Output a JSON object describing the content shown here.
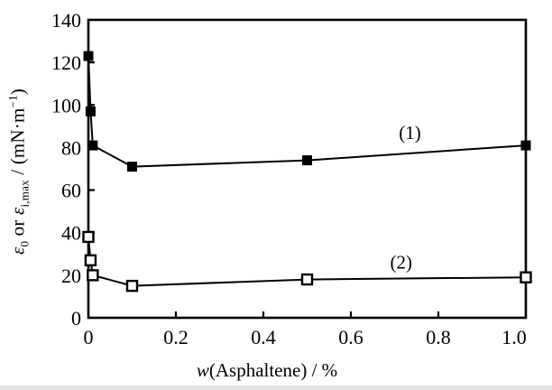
{
  "figure": {
    "background": "#ffffff",
    "ink_color": "#000000"
  },
  "chart_data": {
    "type": "line",
    "xlabel_italic": "w",
    "xlabel_rest": "(Asphaltene) / %",
    "ylabel": {
      "eps1": "ε",
      "eps1_sub": "0",
      "middle": " or ",
      "eps2": "ε",
      "eps2_sub": "i,max",
      "divider": " / (mN·m",
      "exponent": "−1",
      "close": ")"
    },
    "xlim": [
      0,
      1.0
    ],
    "ylim": [
      0,
      140
    ],
    "x_ticks": {
      "values": [
        0,
        0.2,
        0.4,
        0.6,
        0.8,
        1.0
      ],
      "labels": [
        "0",
        "0.2",
        "0.4",
        "0.6",
        "0.8",
        "1.0"
      ]
    },
    "y_ticks": {
      "values": [
        0,
        20,
        40,
        60,
        80,
        100,
        120,
        140
      ],
      "labels": [
        "0",
        "20",
        "40",
        "60",
        "80",
        "100",
        "120",
        "140"
      ]
    },
    "grid": false,
    "legend_position": "inline-annotations",
    "series": [
      {
        "name": "(1)",
        "marker": "filled-square",
        "x": [
          0,
          0.005,
          0.01,
          0.1,
          0.5,
          1.0
        ],
        "values": [
          123,
          97,
          81,
          71,
          74,
          81
        ]
      },
      {
        "name": "(2)",
        "marker": "open-square",
        "x": [
          0,
          0.005,
          0.01,
          0.1,
          0.5,
          1.0
        ],
        "values": [
          38,
          27,
          20,
          15,
          18,
          19
        ]
      }
    ],
    "annotations": [
      {
        "text": "(1)",
        "x": 0.735,
        "y": 87
      },
      {
        "text": "(2)",
        "x": 0.715,
        "y": 26
      }
    ]
  }
}
